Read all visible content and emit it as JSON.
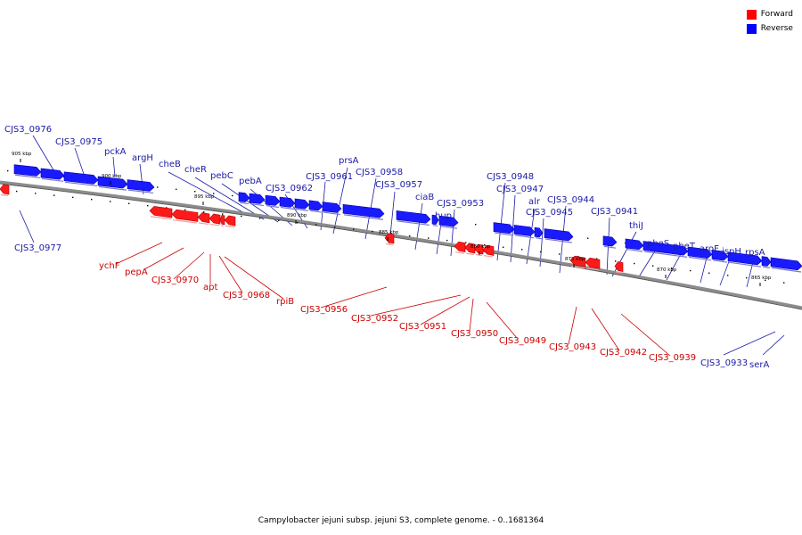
{
  "legend": {
    "forward_label": "Forward",
    "reverse_label": "Reverse",
    "forward_color": "#ff0000",
    "reverse_color": "#0000ff"
  },
  "caption": "Campylobacter jejuni subsp. jejuni S3, complete genome. - 0..1681364",
  "kbp_labels": [
    "905 kbp",
    "900 kbp",
    "895 kbp",
    "890 kbp",
    "885 kbp",
    "880 kbp",
    "875 kbp",
    "870 kbp",
    "865 kbp"
  ],
  "genes": [
    {
      "id": "CJS3_0976",
      "strand": "reverse"
    },
    {
      "id": "CJS3_0975",
      "strand": "reverse"
    },
    {
      "id": "pckA",
      "strand": "reverse"
    },
    {
      "id": "argH",
      "strand": "reverse"
    },
    {
      "id": "CJS3_0977",
      "strand": "reverse"
    },
    {
      "id": "cheB",
      "strand": "reverse"
    },
    {
      "id": "cheR",
      "strand": "reverse"
    },
    {
      "id": "pebC",
      "strand": "reverse"
    },
    {
      "id": "pebA",
      "strand": "reverse"
    },
    {
      "id": "CJS3_0962",
      "strand": "reverse"
    },
    {
      "id": "CJS3_0961",
      "strand": "reverse"
    },
    {
      "id": "prsA",
      "strand": "reverse"
    },
    {
      "id": "CJS3_0958",
      "strand": "reverse"
    },
    {
      "id": "CJS3_0957",
      "strand": "reverse"
    },
    {
      "id": "ciaB",
      "strand": "reverse"
    },
    {
      "id": "CJS3_0953",
      "strand": "reverse"
    },
    {
      "id": "hup",
      "strand": "reverse"
    },
    {
      "id": "CJS3_0948",
      "strand": "reverse"
    },
    {
      "id": "CJS3_0947",
      "strand": "reverse"
    },
    {
      "id": "alr",
      "strand": "reverse"
    },
    {
      "id": "CJS3_0945",
      "strand": "reverse"
    },
    {
      "id": "CJS3_0944",
      "strand": "reverse"
    },
    {
      "id": "CJS3_0941",
      "strand": "reverse"
    },
    {
      "id": "thiJ",
      "strand": "reverse"
    },
    {
      "id": "pheS",
      "strand": "reverse"
    },
    {
      "id": "pheT",
      "strand": "reverse"
    },
    {
      "id": "aroF",
      "strand": "reverse"
    },
    {
      "id": "ispH",
      "strand": "reverse"
    },
    {
      "id": "rpsA",
      "strand": "reverse"
    },
    {
      "id": "CJS3_0933",
      "strand": "reverse"
    },
    {
      "id": "serA",
      "strand": "reverse"
    },
    {
      "id": "ychF",
      "strand": "forward"
    },
    {
      "id": "pepA",
      "strand": "forward"
    },
    {
      "id": "CJS3_0970",
      "strand": "forward"
    },
    {
      "id": "apt",
      "strand": "forward"
    },
    {
      "id": "CJS3_0968",
      "strand": "forward"
    },
    {
      "id": "rpiB",
      "strand": "forward"
    },
    {
      "id": "CJS3_0956",
      "strand": "forward"
    },
    {
      "id": "CJS3_0952",
      "strand": "forward"
    },
    {
      "id": "CJS3_0951",
      "strand": "forward"
    },
    {
      "id": "CJS3_0950",
      "strand": "forward"
    },
    {
      "id": "CJS3_0949",
      "strand": "forward"
    },
    {
      "id": "CJS3_0943",
      "strand": "forward"
    },
    {
      "id": "CJS3_0942",
      "strand": "forward"
    },
    {
      "id": "CJS3_0939",
      "strand": "forward"
    }
  ]
}
